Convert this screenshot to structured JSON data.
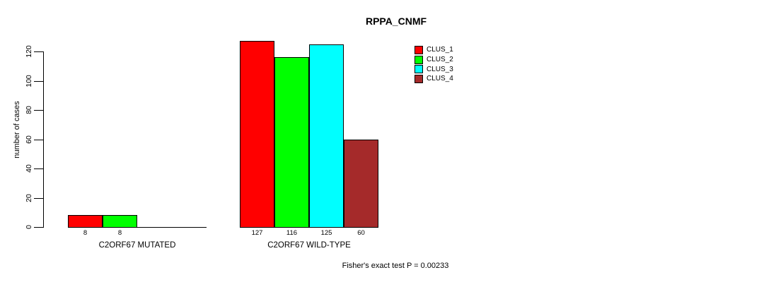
{
  "title": "RPPA_CNMF",
  "footer": {
    "stat_note": "Fisher's exact test P = 0.00233"
  },
  "chart_data": {
    "type": "bar",
    "title": "RPPA_CNMF",
    "xlabel": "",
    "ylabel": "number of cases",
    "ylim": [
      0,
      120
    ],
    "yticks": [
      0,
      20,
      40,
      60,
      80,
      100,
      120
    ],
    "grid": false,
    "legend_position": "top-right",
    "annotation": "Fisher's exact test P = 0.00233",
    "categories": [
      "C2ORF67 MUTATED",
      "C2ORF67 WILD-TYPE"
    ],
    "series": [
      {
        "name": "CLUS_1",
        "color": "#FF0000",
        "values": [
          8,
          127
        ]
      },
      {
        "name": "CLUS_2",
        "color": "#00FF00",
        "values": [
          8,
          116
        ]
      },
      {
        "name": "CLUS_3",
        "color": "#00FFFF",
        "values": [
          0,
          125
        ]
      },
      {
        "name": "CLUS_4",
        "color": "#A52A2A",
        "values": [
          0,
          60
        ]
      }
    ]
  }
}
